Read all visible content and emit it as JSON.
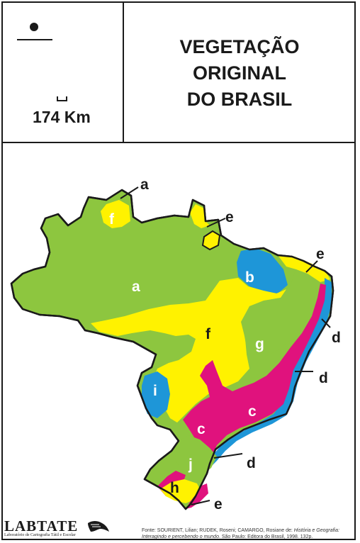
{
  "title": {
    "line1": "VEGETAÇÃO",
    "line2": "ORIGINAL",
    "line3": "DO BRASIL"
  },
  "scale": {
    "label": "174 Km"
  },
  "regions": [
    {
      "letter": "a",
      "color": "#8dc63f"
    },
    {
      "letter": "b",
      "color": "#1e96d8"
    },
    {
      "letter": "c",
      "color": "#e0127d"
    },
    {
      "letter": "d",
      "color": "#1e96d8"
    },
    {
      "letter": "e",
      "color": "#fff200"
    },
    {
      "letter": "f",
      "color": "#fff200"
    },
    {
      "letter": "g",
      "color": "#8dc63f"
    },
    {
      "letter": "h",
      "color": "#fff200"
    },
    {
      "letter": "i",
      "color": "#1e96d8"
    },
    {
      "letter": "j",
      "color": "#8dc63f"
    }
  ],
  "logo": {
    "name": "LABTATE",
    "subtitle": "Laboratório de Cartografia Tátil e Escolar"
  },
  "source": {
    "prefix": "Fonte: SOURIENT, Lilian; RUDEK, Roseni; CAMARGO, Rosiane de: ",
    "book": "História e Geografia: Interagindo e percebendo o mundo",
    "suffix": ". São Paulo: Editora do Brasil, 1998. 132p."
  }
}
